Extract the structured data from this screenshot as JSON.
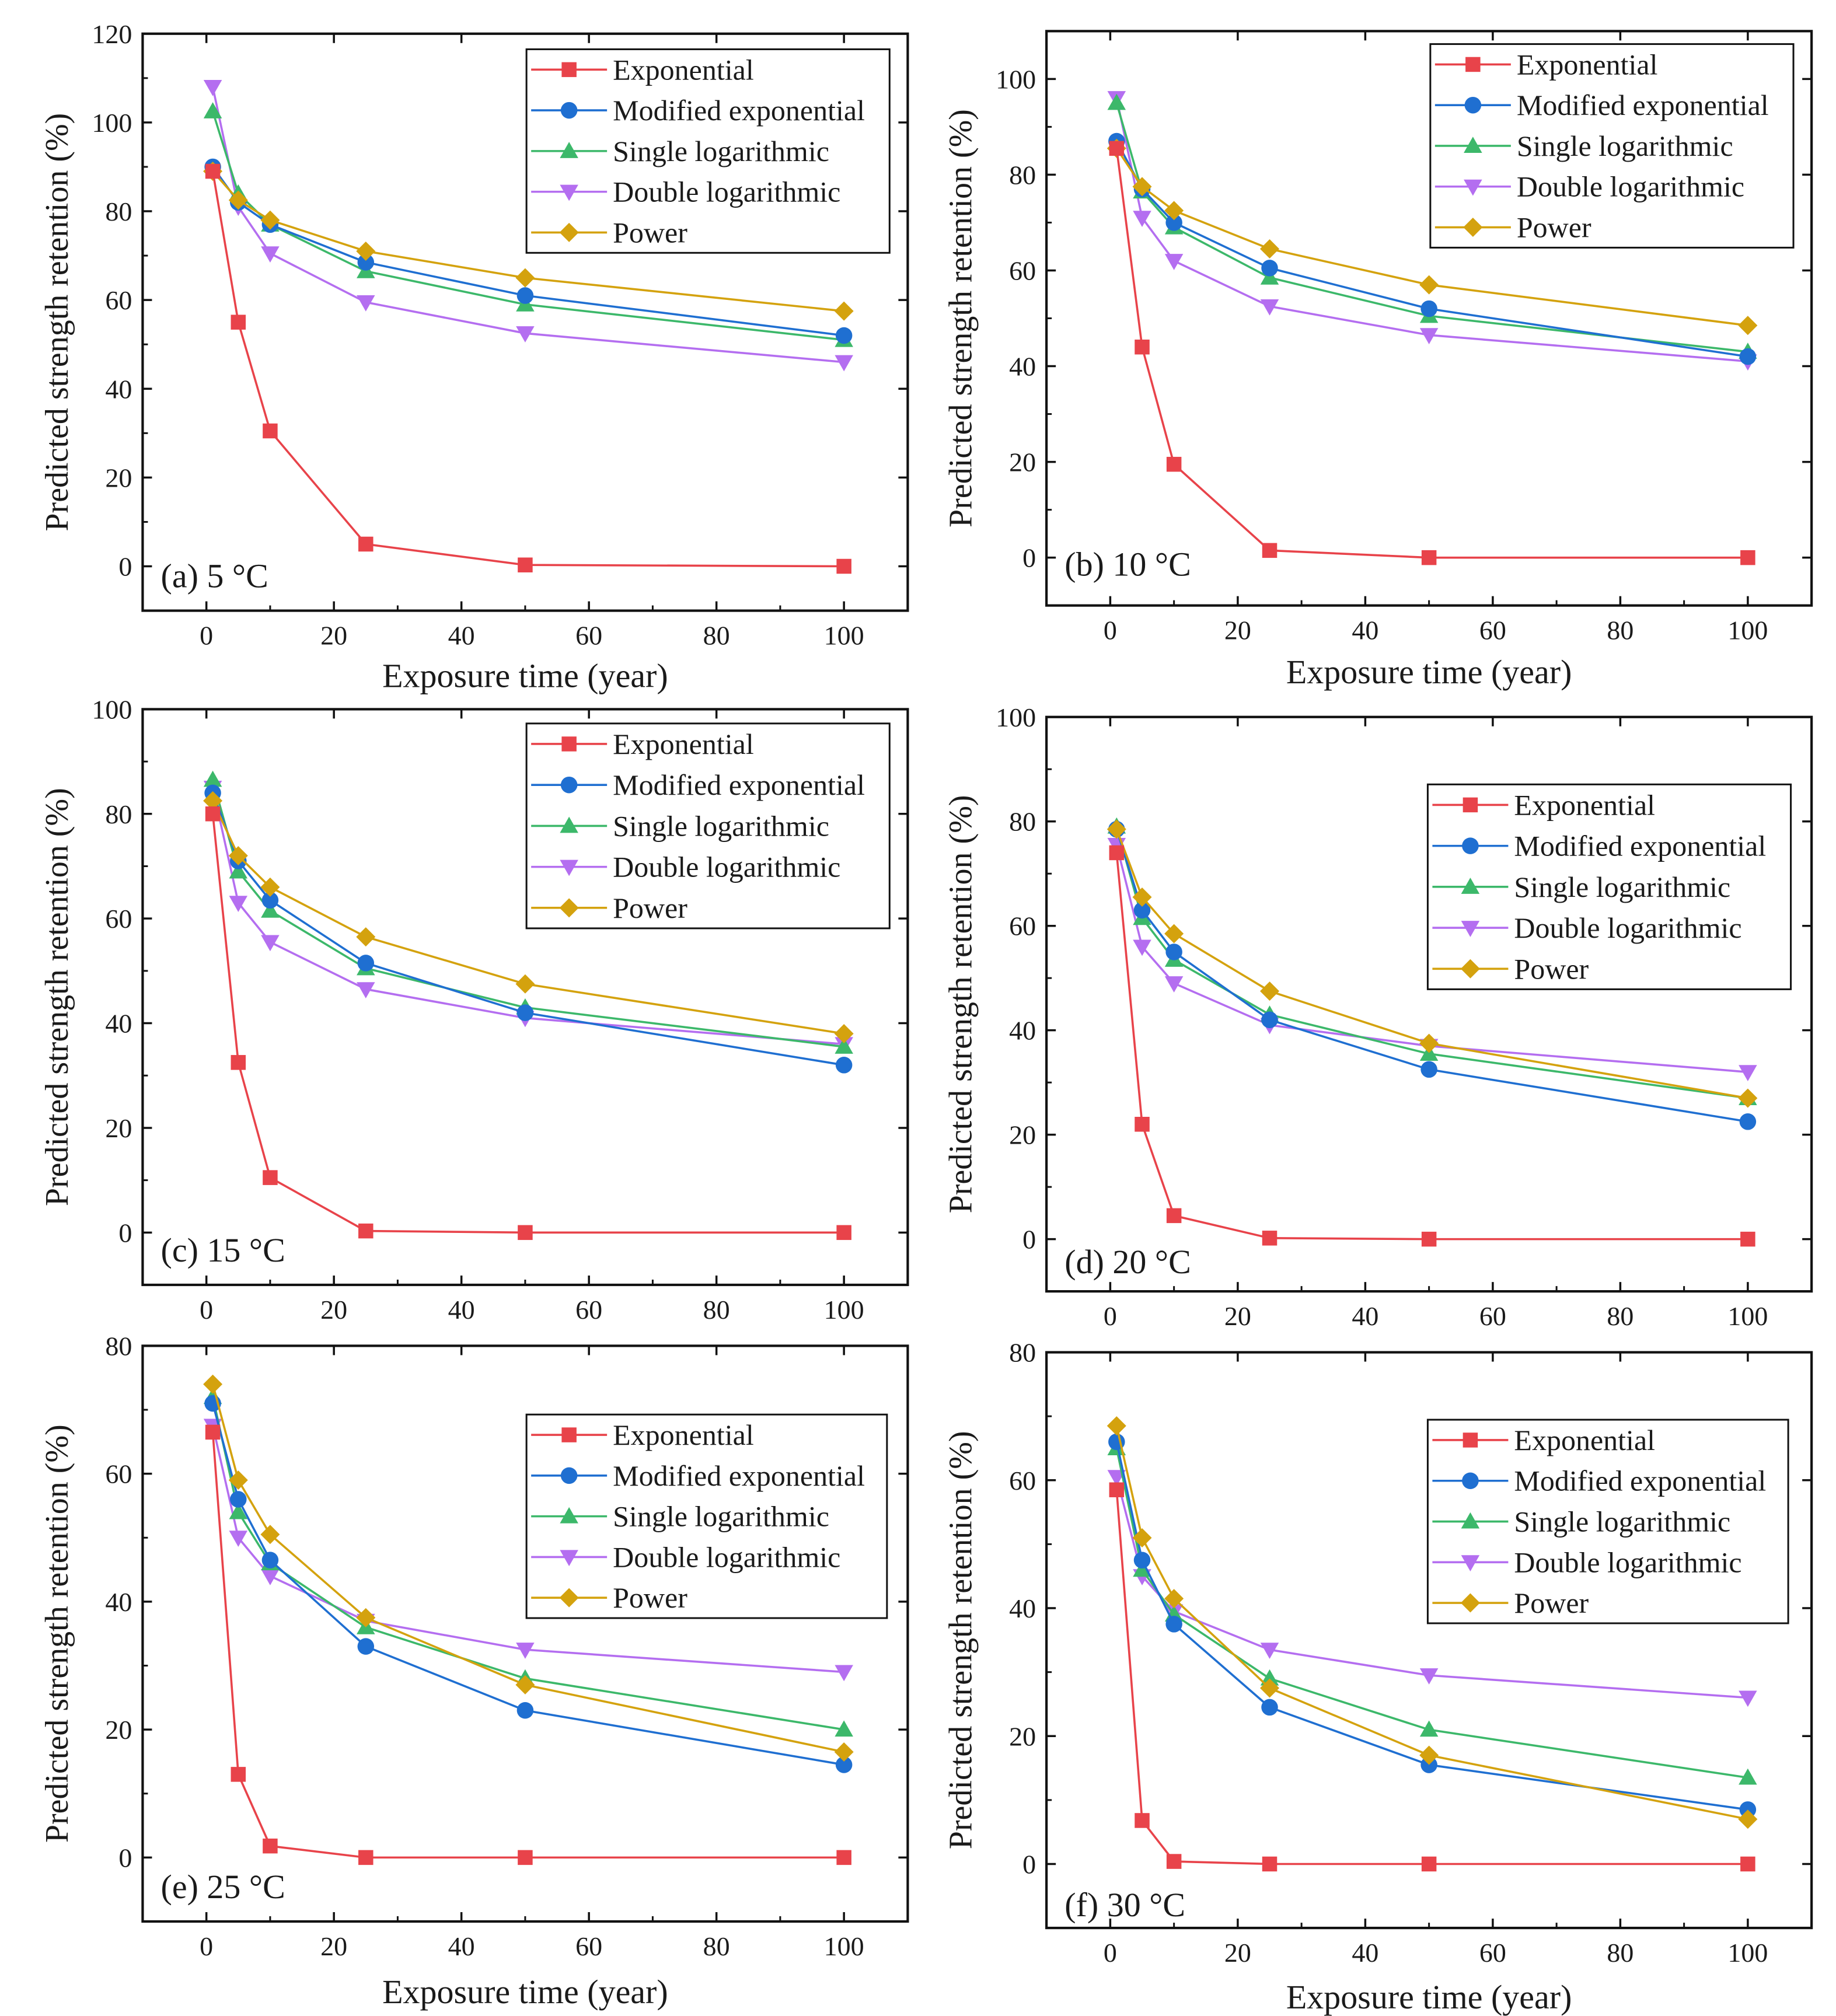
{
  "colors": {
    "Exponential": "#e8434a",
    "Modified exponential": "#1f6fd1",
    "Single logarithmic": "#3cb86a",
    "Double logarithmic": "#b46ef0",
    "Power": "#d4a20e"
  },
  "chart_data": [
    {
      "type": "line",
      "panel": "a",
      "label": "(a) 5 °C",
      "xlabel": "Exposure time (year)",
      "ylabel": "Predicted strength retention (%)",
      "xlim": [
        -10,
        110
      ],
      "ylim": [
        -10,
        120
      ],
      "xticks": [
        0,
        20,
        40,
        60,
        80,
        100
      ],
      "yticks": [
        0,
        20,
        40,
        60,
        80,
        100,
        120
      ],
      "legend_position": "top-right",
      "x": [
        1,
        5,
        10,
        25,
        50,
        100
      ],
      "series": [
        {
          "name": "Exponential",
          "marker": "square",
          "values": [
            89,
            55,
            30.5,
            5,
            0.3,
            0
          ]
        },
        {
          "name": "Modified exponential",
          "marker": "circle",
          "values": [
            90,
            82,
            77,
            68.5,
            61,
            52
          ]
        },
        {
          "name": "Single logarithmic",
          "marker": "triangle-up",
          "values": [
            102.5,
            84,
            77,
            66.5,
            59,
            51
          ]
        },
        {
          "name": "Double logarithmic",
          "marker": "triangle-down",
          "values": [
            108,
            81,
            70.5,
            59.5,
            52.5,
            46
          ]
        },
        {
          "name": "Power",
          "marker": "diamond",
          "values": [
            89,
            82.5,
            78,
            71,
            65,
            57.5
          ]
        }
      ]
    },
    {
      "type": "line",
      "panel": "b",
      "label": "(b) 10 °C",
      "xlabel": "Exposure time (year)",
      "ylabel": "Predicted strength retention (%)",
      "xlim": [
        -10,
        110
      ],
      "ylim": [
        -10,
        110
      ],
      "xticks": [
        0,
        20,
        40,
        60,
        80,
        100
      ],
      "yticks": [
        0,
        20,
        40,
        60,
        80,
        100
      ],
      "legend_position": "top-right",
      "x": [
        1,
        5,
        10,
        25,
        50,
        100
      ],
      "series": [
        {
          "name": "Exponential",
          "marker": "square",
          "values": [
            85.5,
            44,
            19.5,
            1.5,
            0,
            0
          ]
        },
        {
          "name": "Modified exponential",
          "marker": "circle",
          "values": [
            87,
            77,
            70,
            60.5,
            52,
            42
          ]
        },
        {
          "name": "Single logarithmic",
          "marker": "triangle-up",
          "values": [
            95,
            76.5,
            69,
            58.5,
            50.5,
            43
          ]
        },
        {
          "name": "Double logarithmic",
          "marker": "triangle-down",
          "values": [
            96,
            71,
            62,
            52.5,
            46.5,
            41
          ]
        },
        {
          "name": "Power",
          "marker": "diamond",
          "values": [
            85.5,
            77.5,
            72.5,
            64.5,
            57,
            48.5
          ]
        }
      ]
    },
    {
      "type": "line",
      "panel": "c",
      "label": "(c) 15 °C",
      "xlabel": "",
      "ylabel": "Predicted strength retention (%)",
      "xlim": [
        -10,
        110
      ],
      "ylim": [
        -10,
        100
      ],
      "xticks": [
        0,
        20,
        40,
        60,
        80,
        100
      ],
      "yticks": [
        0,
        20,
        40,
        60,
        80,
        100
      ],
      "legend_position": "top-right",
      "x": [
        1,
        5,
        10,
        25,
        50,
        100
      ],
      "series": [
        {
          "name": "Exponential",
          "marker": "square",
          "values": [
            80,
            32.5,
            10.5,
            0.3,
            0,
            0
          ]
        },
        {
          "name": "Modified exponential",
          "marker": "circle",
          "values": [
            84,
            71,
            63.5,
            51.5,
            42,
            32
          ]
        },
        {
          "name": "Single logarithmic",
          "marker": "triangle-up",
          "values": [
            86.5,
            69,
            61.5,
            50.5,
            43,
            35.5
          ]
        },
        {
          "name": "Double logarithmic",
          "marker": "triangle-down",
          "values": [
            85,
            63,
            55.5,
            46.5,
            41,
            36
          ]
        },
        {
          "name": "Power",
          "marker": "diamond",
          "values": [
            82.5,
            72,
            66,
            56.5,
            47.5,
            38
          ]
        }
      ]
    },
    {
      "type": "line",
      "panel": "d",
      "label": "(d) 20 °C",
      "xlabel": "",
      "ylabel": "Predicted strength retention (%)",
      "xlim": [
        -10,
        110
      ],
      "ylim": [
        -10,
        100
      ],
      "xticks": [
        0,
        20,
        40,
        60,
        80,
        100
      ],
      "yticks": [
        0,
        20,
        40,
        60,
        80,
        100
      ],
      "legend_position": "top-right",
      "x": [
        1,
        5,
        10,
        25,
        50,
        100
      ],
      "series": [
        {
          "name": "Exponential",
          "marker": "square",
          "values": [
            74,
            22,
            4.5,
            0.2,
            0,
            0
          ]
        },
        {
          "name": "Modified exponential",
          "marker": "circle",
          "values": [
            78.5,
            63,
            55,
            42,
            32.5,
            22.5
          ]
        },
        {
          "name": "Single logarithmic",
          "marker": "triangle-up",
          "values": [
            79,
            61.5,
            53.5,
            43,
            35.5,
            27
          ]
        },
        {
          "name": "Double logarithmic",
          "marker": "triangle-down",
          "values": [
            75.5,
            56,
            49,
            41,
            37,
            32
          ]
        },
        {
          "name": "Power",
          "marker": "diamond",
          "values": [
            78.5,
            65.5,
            58.5,
            47.5,
            37.5,
            27
          ]
        }
      ]
    },
    {
      "type": "line",
      "panel": "e",
      "label": "(e) 25 °C",
      "xlabel": "Exposure time (year)",
      "ylabel": "Predicted strength retention (%)",
      "xlim": [
        -10,
        110
      ],
      "ylim": [
        -10,
        80
      ],
      "xticks": [
        0,
        20,
        40,
        60,
        80,
        100
      ],
      "yticks": [
        0,
        20,
        40,
        60,
        80
      ],
      "legend_position": "top-right",
      "x": [
        1,
        5,
        10,
        25,
        50,
        100
      ],
      "series": [
        {
          "name": "Exponential",
          "marker": "square",
          "values": [
            66.5,
            13,
            1.8,
            0,
            0,
            0
          ]
        },
        {
          "name": "Modified exponential",
          "marker": "circle",
          "values": [
            71,
            56,
            46.5,
            33,
            23,
            14.5
          ]
        },
        {
          "name": "Single logarithmic",
          "marker": "triangle-up",
          "values": [
            72,
            54,
            46,
            36,
            28,
            20
          ]
        },
        {
          "name": "Double logarithmic",
          "marker": "triangle-down",
          "values": [
            67.5,
            50,
            44,
            37,
            32.5,
            29
          ]
        },
        {
          "name": "Power",
          "marker": "diamond",
          "values": [
            74,
            59,
            50.5,
            37.5,
            27,
            16.5
          ]
        }
      ]
    },
    {
      "type": "line",
      "panel": "f",
      "label": "(f) 30 °C",
      "xlabel": "Exposure time (year)",
      "ylabel": "Predicted strength retention (%)",
      "xlim": [
        -10,
        110
      ],
      "ylim": [
        -10,
        80
      ],
      "xticks": [
        0,
        20,
        40,
        60,
        80,
        100
      ],
      "yticks": [
        0,
        20,
        40,
        60,
        80
      ],
      "legend_position": "top-right",
      "x": [
        1,
        5,
        10,
        25,
        50,
        100
      ],
      "series": [
        {
          "name": "Exponential",
          "marker": "square",
          "values": [
            58.5,
            6.8,
            0.4,
            0,
            0,
            0
          ]
        },
        {
          "name": "Modified exponential",
          "marker": "circle",
          "values": [
            66,
            47.5,
            37.5,
            24.5,
            15.5,
            8.5
          ]
        },
        {
          "name": "Single logarithmic",
          "marker": "triangle-up",
          "values": [
            65,
            46,
            39,
            29,
            21,
            13.5
          ]
        },
        {
          "name": "Double logarithmic",
          "marker": "triangle-down",
          "values": [
            60.5,
            45,
            39.5,
            33.5,
            29.5,
            26
          ]
        },
        {
          "name": "Power",
          "marker": "diamond",
          "values": [
            68.5,
            51,
            41.5,
            27.5,
            17,
            7
          ]
        }
      ]
    }
  ]
}
